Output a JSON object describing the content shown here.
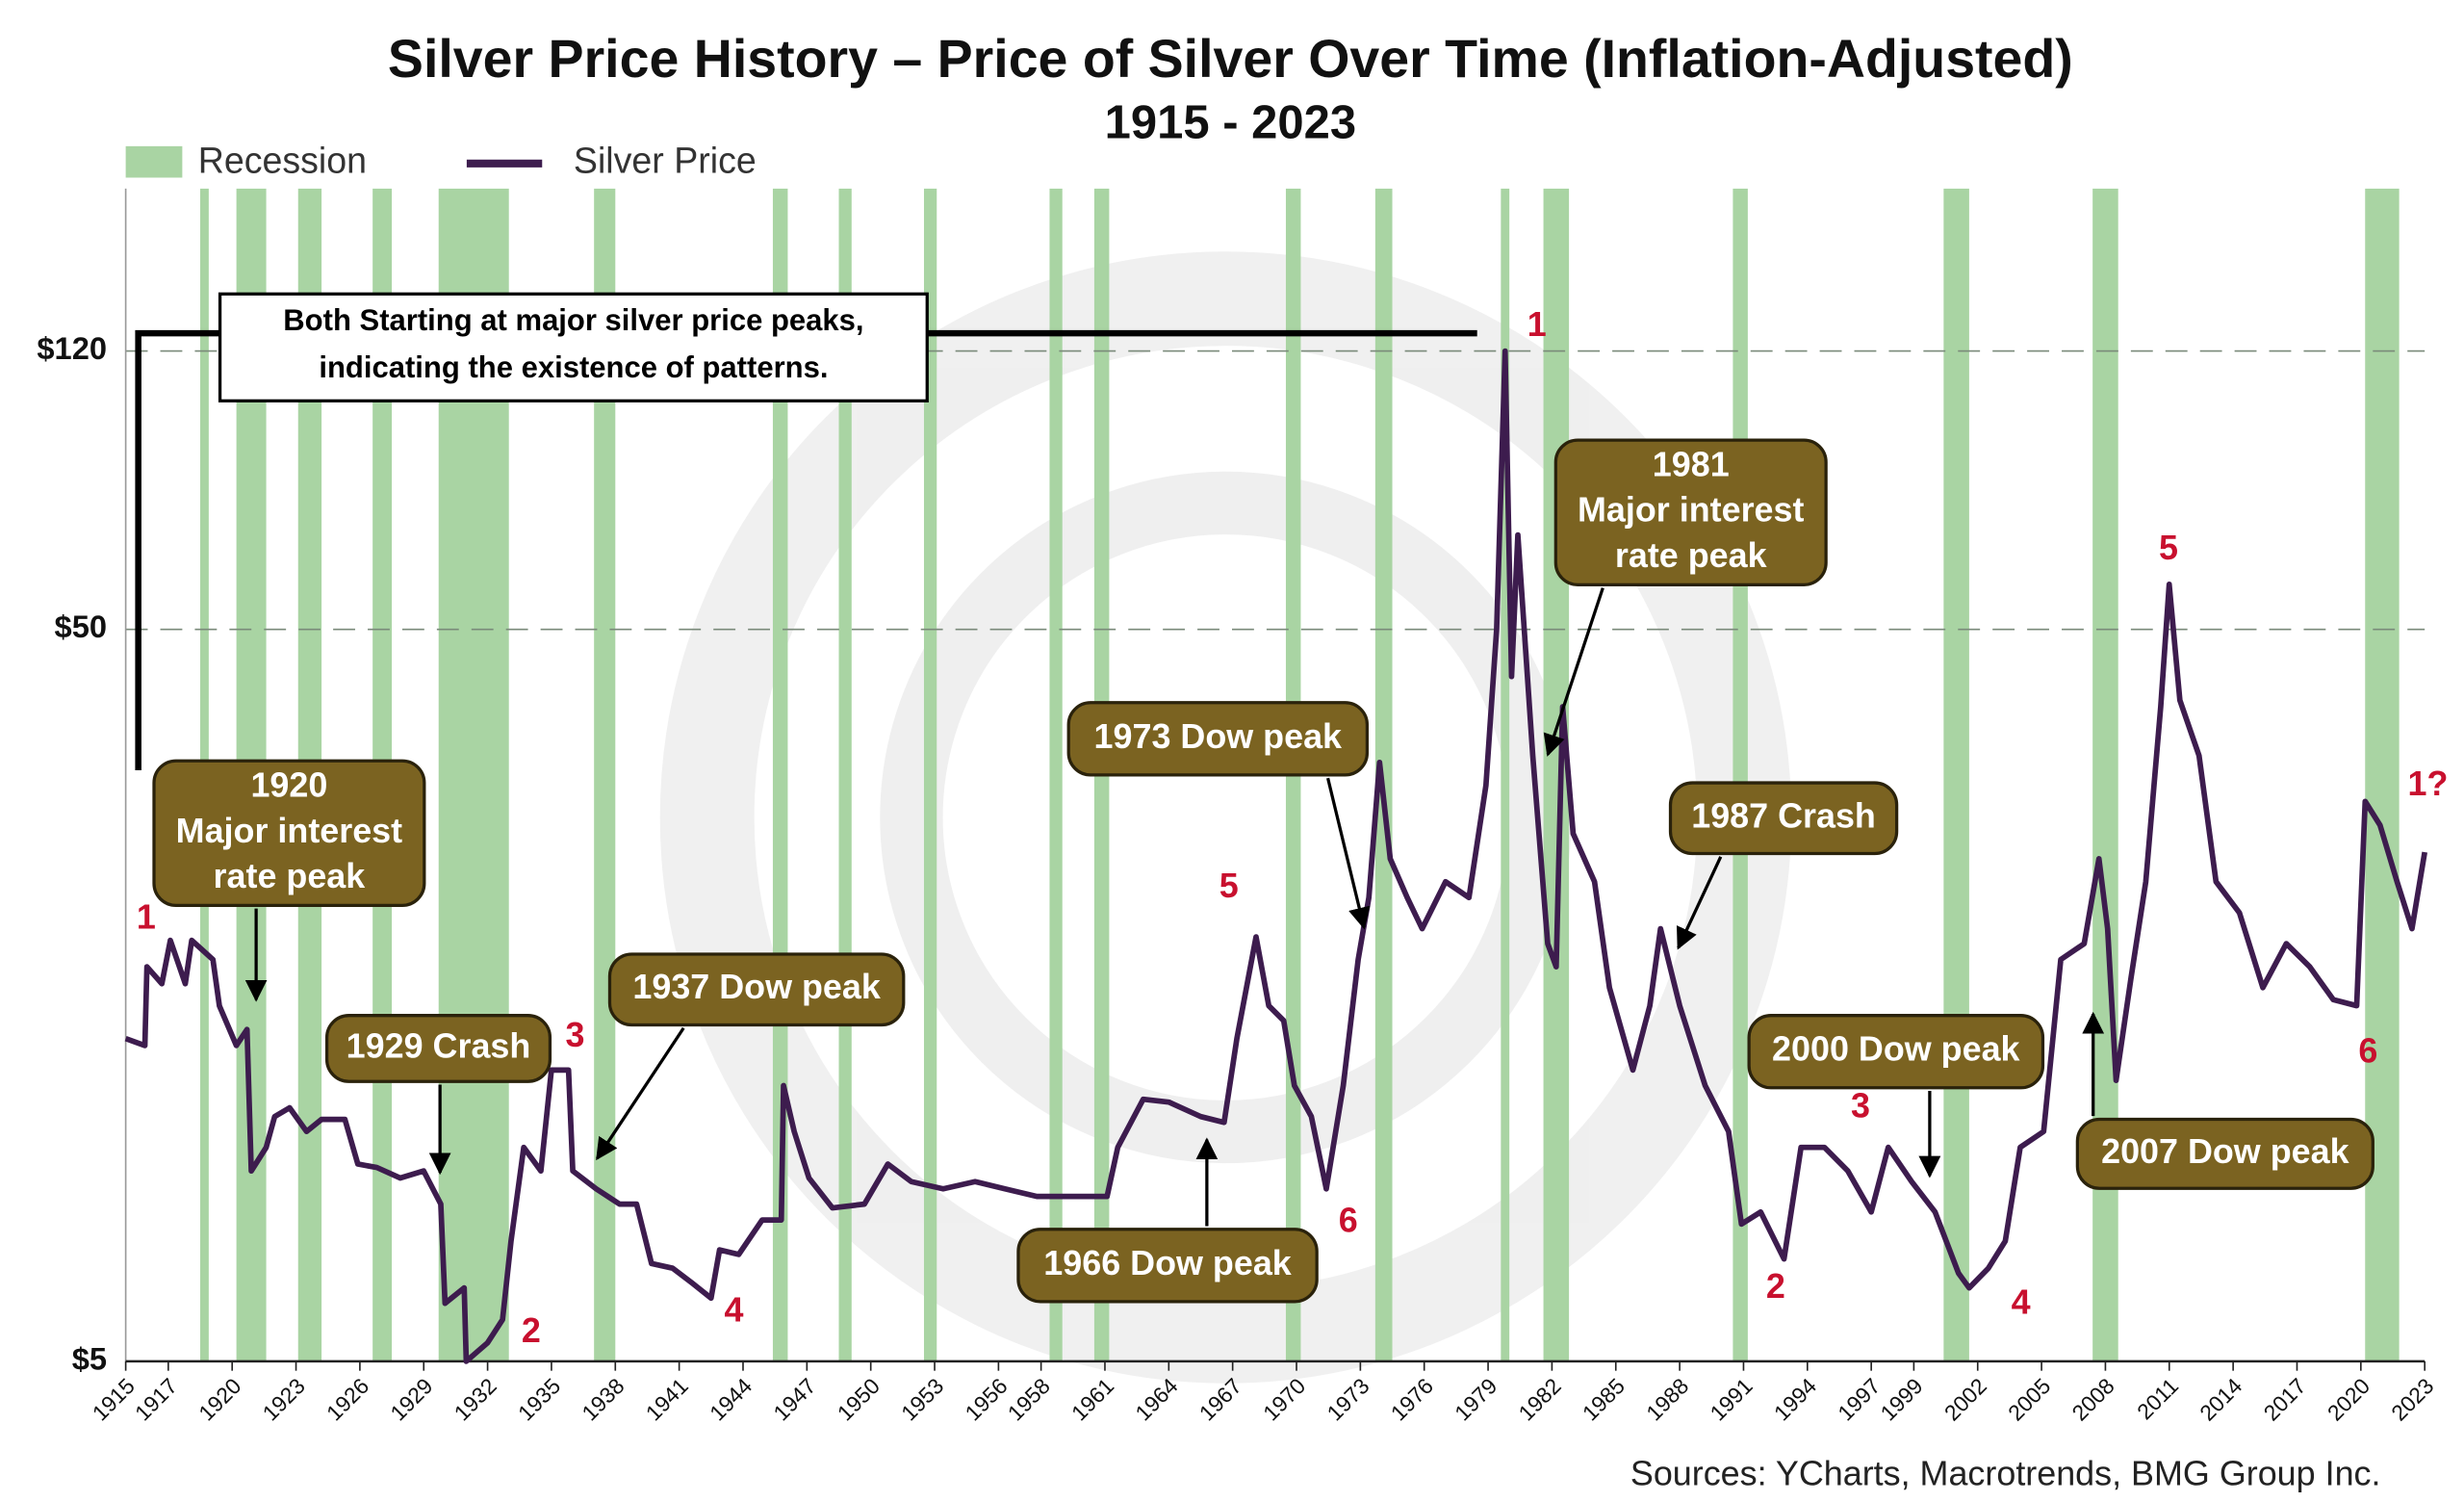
{
  "chart_data": {
    "type": "line",
    "title": "Silver Price History – Price of Silver Over Time (Inflation-Adjusted)",
    "subtitle": "1915 - 2023",
    "source": "Sources: YCharts, Macrotrends, BMG Group Inc.",
    "log_scale": true,
    "grid": true,
    "xlim": [
      1915,
      2023
    ],
    "xticks": [
      1915,
      1917,
      1920,
      1923,
      1926,
      1929,
      1932,
      1935,
      1938,
      1941,
      1944,
      1947,
      1950,
      1953,
      1956,
      1958,
      1961,
      1964,
      1967,
      1970,
      1973,
      1976,
      1979,
      1982,
      1985,
      1988,
      1991,
      1994,
      1997,
      1999,
      2002,
      2005,
      2008,
      2011,
      2014,
      2017,
      2020,
      2023
    ],
    "ylim": [
      5,
      200
    ],
    "yticks": [
      {
        "value": 5,
        "label": "$5"
      },
      {
        "value": 50,
        "label": "$50"
      },
      {
        "value": 120,
        "label": "$120"
      }
    ],
    "recessions": {
      "name": "Recession",
      "color": "#a9d4a3",
      "periods": [
        [
          1918.5,
          1918.9
        ],
        [
          1920.2,
          1921.6
        ],
        [
          1923.1,
          1924.2
        ],
        [
          1926.6,
          1927.5
        ],
        [
          1929.7,
          1933.0
        ],
        [
          1937.0,
          1938.0
        ],
        [
          1945.4,
          1946.1
        ],
        [
          1948.5,
          1949.1
        ],
        [
          1952.5,
          1953.1
        ],
        [
          1958.4,
          1959.0
        ],
        [
          1960.5,
          1961.2
        ],
        [
          1969.5,
          1970.2
        ],
        [
          1973.7,
          1974.5
        ],
        [
          1979.6,
          1980.0
        ],
        [
          1981.6,
          1982.8
        ],
        [
          1990.5,
          1991.2
        ],
        [
          2000.4,
          2001.6
        ],
        [
          2007.4,
          2008.6
        ],
        [
          2020.2,
          2021.8
        ]
      ]
    },
    "x": [
      1915,
      1915.9,
      1916,
      1916.7,
      1917.1,
      1917.8,
      1918.1,
      1919.1,
      1919.4,
      1920.2,
      1920.7,
      1920.9,
      1921.6,
      1922,
      1922.7,
      1923.5,
      1924.2,
      1925.3,
      1925.9,
      1926.8,
      1927.9,
      1929,
      1929.8,
      1930,
      1930.9,
      1931,
      1932,
      1932.7,
      1933.1,
      1933.7,
      1934.5,
      1935,
      1935.8,
      1936,
      1937.1,
      1938.2,
      1939,
      1939.7,
      1940.7,
      1941.6,
      1942.5,
      1942.9,
      1943.8,
      1944.9,
      1945.8,
      1945.9,
      1946.4,
      1947.1,
      1948.2,
      1949.7,
      1950.8,
      1951.9,
      1953.4,
      1954.9,
      1956.3,
      1957.8,
      1959.3,
      1961.1,
      1961.6,
      1962.8,
      1964,
      1965.5,
      1966.6,
      1967.2,
      1968.1,
      1968.7,
      1969.4,
      1969.9,
      1970.7,
      1971.4,
      1972.2,
      1972.9,
      1973.4,
      1973.9,
      1974.4,
      1975.2,
      1975.9,
      1977,
      1978.1,
      1978.9,
      1979.4,
      1979.8,
      1980.1,
      1980.4,
      1981.1,
      1981.8,
      1982.2,
      1982.5,
      1983,
      1984,
      1984.7,
      1985.8,
      1986.6,
      1987.1,
      1988,
      1989.2,
      1990.3,
      1990.9,
      1991.8,
      1992.9,
      1993.7,
      1994.8,
      1995.9,
      1997,
      1997.8,
      1998.9,
      2000,
      2001.1,
      2001.6,
      2002.5,
      2003.3,
      2004,
      2005.1,
      2005.9,
      2007,
      2007.7,
      2008.1,
      2008.5,
      2009.2,
      2009.9,
      2010.6,
      2011,
      2011.5,
      2012.4,
      2013.2,
      2014.3,
      2015.4,
      2016.5,
      2017.6,
      2018.7,
      2019.8,
      2020.2,
      2020.9,
      2021.7,
      2022.4,
      2023
    ],
    "series": [
      {
        "name": "Silver Price",
        "color": "#3d1c4e",
        "values": [
          13.8,
          13.5,
          17.3,
          16.4,
          18.8,
          16.4,
          18.8,
          17.7,
          15.3,
          13.5,
          14.2,
          9.1,
          9.8,
          10.8,
          11.1,
          10.3,
          10.7,
          10.7,
          9.3,
          9.2,
          8.9,
          9.1,
          8.2,
          6.0,
          6.3,
          5.0,
          5.3,
          5.7,
          7.3,
          9.8,
          9.1,
          12.5,
          12.5,
          9.1,
          8.6,
          8.2,
          8.2,
          6.8,
          6.7,
          6.4,
          6.1,
          7.1,
          7.0,
          7.8,
          7.8,
          11.9,
          10.3,
          8.9,
          8.1,
          8.2,
          9.3,
          8.8,
          8.6,
          8.8,
          8.6,
          8.4,
          8.4,
          8.4,
          9.8,
          11.4,
          11.3,
          10.8,
          10.6,
          13.8,
          19.0,
          15.3,
          14.6,
          11.9,
          10.8,
          8.6,
          11.9,
          17.7,
          21.5,
          32.9,
          24.3,
          21.5,
          19.5,
          22.6,
          21.5,
          30.6,
          50,
          120,
          43.1,
          67.3,
          33.6,
          18.6,
          17.3,
          39.2,
          26.3,
          22.6,
          16.2,
          12.5,
          15.3,
          19.5,
          15.3,
          11.9,
          10.3,
          7.7,
          8.0,
          6.9,
          9.8,
          9.8,
          9.1,
          8.0,
          9.8,
          8.8,
          8.0,
          6.6,
          6.3,
          6.7,
          7.3,
          9.8,
          10.3,
          17.7,
          18.6,
          24.3,
          19.5,
          12.1,
          16.7,
          22.6,
          39.2,
          57.6,
          40.0,
          33.6,
          22.6,
          20.5,
          16.2,
          18.6,
          17.3,
          15.6,
          15.3,
          29.1,
          27.0,
          22.6,
          19.5,
          24.8
        ]
      }
    ],
    "note_box": {
      "text": [
        "Both Starting at major silver price peaks,",
        "indicating the existence of patterns."
      ]
    },
    "callouts": [
      {
        "text": [
          "1920",
          "Major interest",
          "rate peak"
        ]
      },
      {
        "text": [
          "1929 Crash"
        ]
      },
      {
        "text": [
          "1937 Dow peak"
        ]
      },
      {
        "text": [
          "1966 Dow peak"
        ]
      },
      {
        "text": [
          "1973 Dow peak"
        ]
      },
      {
        "text": [
          "1981",
          "Major interest",
          "rate peak"
        ]
      },
      {
        "text": [
          "1987 Crash"
        ]
      },
      {
        "text": [
          "2000 Dow peak"
        ]
      },
      {
        "text": [
          "2007 Dow peak"
        ]
      }
    ],
    "markers": [
      "1",
      "2",
      "3",
      "4",
      "5",
      "6",
      "1",
      "2",
      "3",
      "4",
      "5",
      "6",
      "1?"
    ]
  }
}
